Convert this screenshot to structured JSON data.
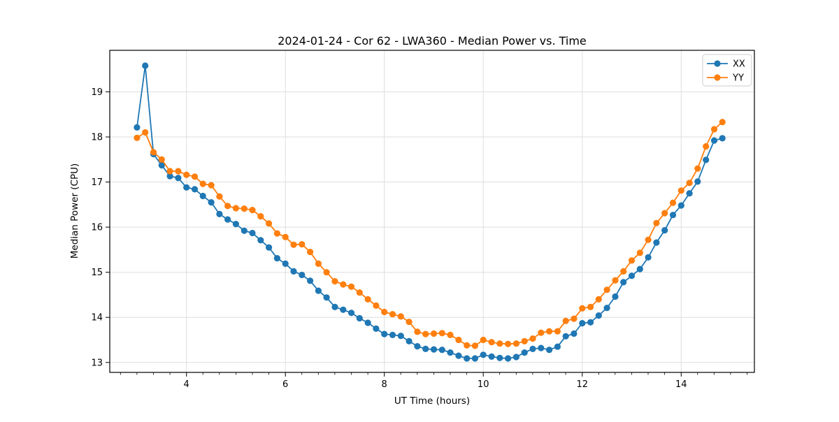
{
  "title": "2024-01-24 - Cor 62 - LWA360 - Median Power vs. Time",
  "colors": {
    "series_xx": "#1f77b4",
    "series_yy": "#ff7f0e",
    "grid": "#dedede",
    "spine": "#000000",
    "background": "#ffffff",
    "legend_border": "#cccccc"
  },
  "legend": {
    "entries": [
      {
        "label": "XX",
        "color": "#1f77b4"
      },
      {
        "label": "YY",
        "color": "#ff7f0e"
      }
    ],
    "position": "upper right"
  },
  "chart_data": {
    "type": "line",
    "title": "2024-01-24 - Cor 62 - LWA360 - Median Power vs. Time",
    "xlabel": "UT Time (hours)",
    "ylabel": "Median Power (CPU)",
    "xlim": [
      2.45,
      15.48
    ],
    "ylim": [
      12.78,
      19.92
    ],
    "x_ticks": [
      4,
      6,
      8,
      10,
      12,
      14
    ],
    "x_minor_step": 0.3333,
    "y_ticks": [
      13,
      14,
      15,
      16,
      17,
      18,
      19
    ],
    "grid": true,
    "legend_position": "upper right",
    "marker": "o",
    "x": [
      3.0,
      3.167,
      3.333,
      3.5,
      3.667,
      3.833,
      4.0,
      4.167,
      4.333,
      4.5,
      4.667,
      4.833,
      5.0,
      5.167,
      5.333,
      5.5,
      5.667,
      5.833,
      6.0,
      6.167,
      6.333,
      6.5,
      6.667,
      6.833,
      7.0,
      7.167,
      7.333,
      7.5,
      7.667,
      7.833,
      8.0,
      8.167,
      8.333,
      8.5,
      8.667,
      8.833,
      9.0,
      9.167,
      9.333,
      9.5,
      9.667,
      9.833,
      10.0,
      10.167,
      10.333,
      10.5,
      10.667,
      10.833,
      11.0,
      11.167,
      11.333,
      11.5,
      11.667,
      11.833,
      12.0,
      12.167,
      12.333,
      12.5,
      12.667,
      12.833,
      13.0,
      13.167,
      13.333,
      13.5,
      13.667,
      13.833,
      14.0,
      14.167,
      14.333,
      14.5,
      14.667,
      14.833
    ],
    "series": [
      {
        "name": "XX",
        "color": "#1f77b4",
        "values": [
          18.21,
          19.58,
          17.62,
          17.37,
          17.13,
          17.09,
          16.88,
          16.84,
          16.69,
          16.55,
          16.29,
          16.17,
          16.07,
          15.92,
          15.87,
          15.71,
          15.55,
          15.31,
          15.19,
          15.02,
          14.94,
          14.81,
          14.59,
          14.44,
          14.23,
          14.17,
          14.1,
          13.98,
          13.88,
          13.75,
          13.63,
          13.61,
          13.59,
          13.47,
          13.36,
          13.3,
          13.29,
          13.28,
          13.22,
          13.15,
          13.09,
          13.09,
          13.17,
          13.13,
          13.1,
          13.09,
          13.12,
          13.22,
          13.3,
          13.32,
          13.28,
          13.35,
          13.58,
          13.64,
          13.87,
          13.89,
          14.04,
          14.21,
          14.46,
          14.78,
          14.92,
          15.07,
          15.33,
          15.66,
          15.93,
          16.27,
          16.48,
          16.75,
          17.01,
          17.49,
          17.92,
          17.97
        ]
      },
      {
        "name": "YY",
        "color": "#ff7f0e",
        "values": [
          17.98,
          18.1,
          17.66,
          17.5,
          17.24,
          17.24,
          17.16,
          17.12,
          16.96,
          16.93,
          16.68,
          16.47,
          16.42,
          16.41,
          16.38,
          16.24,
          16.08,
          15.86,
          15.78,
          15.61,
          15.62,
          15.45,
          15.19,
          15.0,
          14.8,
          14.73,
          14.68,
          14.55,
          14.4,
          14.26,
          14.12,
          14.07,
          14.02,
          13.9,
          13.68,
          13.63,
          13.64,
          13.65,
          13.61,
          13.5,
          13.38,
          13.37,
          13.5,
          13.45,
          13.42,
          13.41,
          13.42,
          13.47,
          13.53,
          13.66,
          13.69,
          13.69,
          13.92,
          13.97,
          14.2,
          14.23,
          14.4,
          14.61,
          14.82,
          15.02,
          15.26,
          15.43,
          15.72,
          16.09,
          16.31,
          16.54,
          16.81,
          16.98,
          17.3,
          17.79,
          18.17,
          18.33
        ]
      }
    ]
  }
}
